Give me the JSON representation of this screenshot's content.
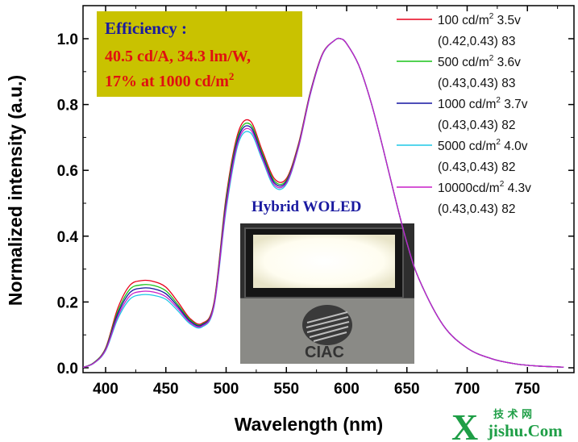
{
  "chart_data": {
    "type": "line",
    "title": "",
    "xlabel": "Wavelength (nm)",
    "ylabel": "Normalized intensity (a.u.)",
    "xlim": [
      380,
      780
    ],
    "ylim": [
      0.0,
      1.1
    ],
    "xticks": [
      400,
      450,
      500,
      550,
      600,
      650,
      700,
      750
    ],
    "xtick_labels": [
      "400",
      "450",
      "500",
      "550",
      "600",
      "650",
      "700",
      "750"
    ],
    "yticks": [
      0.0,
      0.2,
      0.4,
      0.6,
      0.8,
      1.0
    ],
    "ytick_labels": [
      "0.0",
      "0.2",
      "0.4",
      "0.6",
      "0.8",
      "1.0"
    ],
    "grid": false,
    "legend_position": "top-right",
    "x": [
      380,
      390,
      400,
      410,
      420,
      430,
      440,
      450,
      460,
      470,
      480,
      490,
      500,
      510,
      520,
      530,
      540,
      550,
      560,
      570,
      580,
      590,
      595,
      600,
      610,
      620,
      630,
      640,
      650,
      660,
      680,
      700,
      720,
      740,
      760,
      780
    ],
    "series": [
      {
        "name": "100 cd/m2 3.5v",
        "color": "#e8001c",
        "legend_text": "100   cd/m",
        "legend_tail": "  3.5v",
        "legend_sub": "(0.42,0.43)  83",
        "values": [
          0.0,
          0.015,
          0.06,
          0.18,
          0.25,
          0.265,
          0.262,
          0.245,
          0.2,
          0.15,
          0.135,
          0.2,
          0.52,
          0.715,
          0.75,
          0.66,
          0.575,
          0.575,
          0.68,
          0.84,
          0.955,
          0.995,
          1.0,
          0.985,
          0.92,
          0.81,
          0.67,
          0.52,
          0.38,
          0.27,
          0.13,
          0.06,
          0.028,
          0.012,
          0.005,
          0.002
        ]
      },
      {
        "name": "500 cd/m2 3.6v",
        "color": "#19c319",
        "legend_text": "500   cd/m",
        "legend_tail": "  3.6v",
        "legend_sub": "(0.43,0.43)  83",
        "values": [
          0.0,
          0.015,
          0.058,
          0.17,
          0.238,
          0.252,
          0.25,
          0.234,
          0.192,
          0.146,
          0.132,
          0.196,
          0.51,
          0.705,
          0.74,
          0.652,
          0.568,
          0.57,
          0.676,
          0.838,
          0.954,
          0.995,
          1.0,
          0.985,
          0.92,
          0.81,
          0.67,
          0.52,
          0.38,
          0.27,
          0.13,
          0.06,
          0.028,
          0.012,
          0.005,
          0.002
        ]
      },
      {
        "name": "1000 cd/m2 3.7v",
        "color": "#1414a0",
        "legend_text": "1000 cd/m",
        "legend_tail": "  3.7v",
        "legend_sub": "(0.43,0.43)  82",
        "values": [
          0.0,
          0.014,
          0.056,
          0.163,
          0.228,
          0.242,
          0.24,
          0.225,
          0.186,
          0.142,
          0.13,
          0.193,
          0.5,
          0.697,
          0.732,
          0.645,
          0.562,
          0.566,
          0.673,
          0.836,
          0.953,
          0.995,
          1.0,
          0.985,
          0.92,
          0.81,
          0.67,
          0.52,
          0.38,
          0.27,
          0.13,
          0.06,
          0.028,
          0.012,
          0.005,
          0.002
        ]
      },
      {
        "name": "5000 cd/m2 4.0v",
        "color": "#1ec8e6",
        "legend_text": "5000 cd/m",
        "legend_tail": "  4.0v",
        "legend_sub": "(0.43,0.43)  82",
        "values": [
          0.0,
          0.013,
          0.052,
          0.148,
          0.208,
          0.222,
          0.22,
          0.208,
          0.173,
          0.134,
          0.124,
          0.186,
          0.48,
          0.68,
          0.715,
          0.632,
          0.55,
          0.558,
          0.668,
          0.832,
          0.952,
          0.995,
          1.0,
          0.985,
          0.92,
          0.81,
          0.67,
          0.52,
          0.38,
          0.27,
          0.13,
          0.06,
          0.028,
          0.012,
          0.005,
          0.002
        ]
      },
      {
        "name": "10000cd/m2 4.3v",
        "color": "#c81ec8",
        "legend_text": "10000cd/m",
        "legend_tail": " 4.3v",
        "legend_sub": "(0.43,0.43)  82",
        "values": [
          0.0,
          0.0135,
          0.054,
          0.155,
          0.218,
          0.232,
          0.23,
          0.216,
          0.18,
          0.138,
          0.127,
          0.19,
          0.49,
          0.688,
          0.724,
          0.638,
          0.556,
          0.562,
          0.67,
          0.834,
          0.953,
          0.995,
          1.0,
          0.985,
          0.92,
          0.81,
          0.67,
          0.52,
          0.38,
          0.27,
          0.13,
          0.06,
          0.028,
          0.012,
          0.005,
          0.002
        ]
      }
    ],
    "legend_sup": "2",
    "annotations": {
      "efficiency_title": "Efficiency :",
      "efficiency_line1": "40.5 cd/A, 34.3 lm/W,",
      "efficiency_line2": "17% at 1000 cd/m",
      "efficiency_sup": "2",
      "inset_title": "Hybrid WOLED",
      "inset_logo_text": "CIAC"
    }
  },
  "colors": {
    "efficiency_box": "#c9c200",
    "inset_bg": "#4a4a4a",
    "panel_glow": "#fffef4"
  },
  "watermark": {
    "big_letter": "X",
    "chinese": "技 术 网",
    "site": "jishu.Com"
  }
}
